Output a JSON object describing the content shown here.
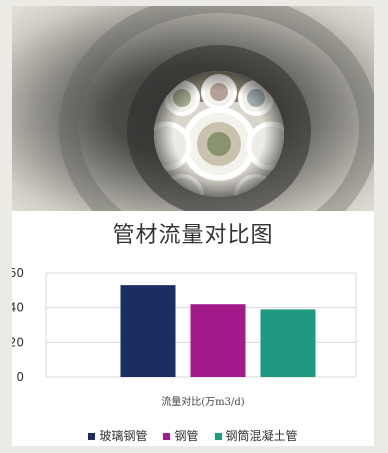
{
  "colors": {
    "background": "#eceae4",
    "card": "#ffffff",
    "grid": "#d9d9d9",
    "text": "#333333"
  },
  "photo": {
    "description_icon": "pipe-interior-image"
  },
  "chart_data": {
    "type": "bar",
    "title": "管材流量对比图",
    "xlabel": "流量对比(万m3/d)",
    "ylabel": "",
    "ylim": [
      0,
      60
    ],
    "yticks": [
      "0",
      "20",
      "40",
      "60"
    ],
    "grid": true,
    "legend_position": "bottom",
    "series": [
      {
        "name": "玻璃钢管",
        "value": 53,
        "color": "#1a2e63"
      },
      {
        "name": "钢管",
        "value": 42,
        "color": "#a31a8a"
      },
      {
        "name": "钢筒混凝土管",
        "value": 39,
        "color": "#1f9a80"
      }
    ]
  }
}
